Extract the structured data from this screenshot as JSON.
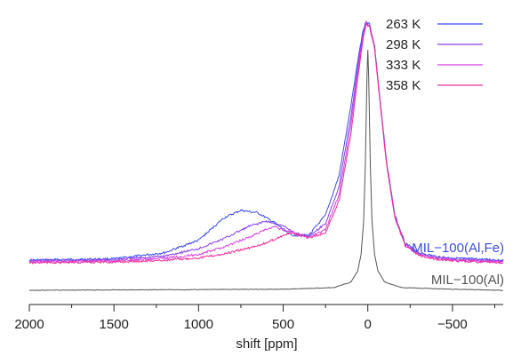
{
  "chart_data": {
    "type": "line",
    "xlabel": "shift [ppm]",
    "ylabel": "",
    "xlim": [
      2000,
      -800
    ],
    "x_reversed": true,
    "x_ticks": [
      2000,
      1500,
      1000,
      500,
      0,
      -500
    ],
    "x_tick_labels": [
      "2000",
      "1500",
      "1000",
      "500",
      "0",
      "−500"
    ],
    "y_axis_visible": false,
    "grid": false,
    "legend_position": "top-right",
    "series_labels": [
      {
        "text": "MIL−100(Al,Fe)",
        "color": "#3b4cf0"
      },
      {
        "text": "MIL−100(Al)",
        "color": "#555555"
      }
    ],
    "series": [
      {
        "name": "263 K",
        "color": "#3b4cf0",
        "x": [
          2000,
          1500,
          1200,
          1000,
          850,
          750,
          650,
          550,
          450,
          350,
          250,
          170,
          100,
          60,
          30,
          10,
          -10,
          -40,
          -70,
          -110,
          -160,
          -220,
          -300,
          -400,
          -500,
          -600,
          -800
        ],
        "y": [
          0.0,
          0.005,
          0.03,
          0.08,
          0.17,
          0.2,
          0.19,
          0.15,
          0.1,
          0.1,
          0.18,
          0.34,
          0.62,
          0.8,
          0.92,
          0.96,
          0.95,
          0.86,
          0.66,
          0.4,
          0.18,
          0.07,
          0.03,
          0.015,
          0.008,
          0.005,
          0.0
        ]
      },
      {
        "name": "298 K",
        "color": "#8a3ff0",
        "x": [
          2000,
          1500,
          1200,
          1000,
          850,
          700,
          600,
          500,
          420,
          350,
          250,
          170,
          100,
          60,
          30,
          10,
          -10,
          -40,
          -70,
          -110,
          -160,
          -220,
          -300,
          -400,
          -500,
          -600,
          -800
        ],
        "y": [
          0.0,
          0.005,
          0.02,
          0.05,
          0.09,
          0.14,
          0.16,
          0.14,
          0.11,
          0.1,
          0.15,
          0.3,
          0.58,
          0.78,
          0.91,
          0.96,
          0.95,
          0.86,
          0.66,
          0.4,
          0.18,
          0.07,
          0.03,
          0.015,
          0.008,
          0.005,
          0.0
        ]
      },
      {
        "name": "333 K",
        "color": "#d53fe0",
        "x": [
          2000,
          1500,
          1200,
          1000,
          850,
          700,
          600,
          550,
          450,
          350,
          250,
          170,
          100,
          60,
          30,
          10,
          -10,
          -40,
          -70,
          -110,
          -160,
          -220,
          -300,
          -400,
          -500,
          -600,
          -800
        ],
        "y": [
          0.0,
          0.003,
          0.015,
          0.03,
          0.06,
          0.1,
          0.13,
          0.14,
          0.12,
          0.1,
          0.13,
          0.27,
          0.55,
          0.76,
          0.9,
          0.96,
          0.95,
          0.86,
          0.66,
          0.4,
          0.18,
          0.07,
          0.03,
          0.015,
          0.008,
          0.005,
          0.0
        ]
      },
      {
        "name": "358 K",
        "color": "#f0309a",
        "x": [
          2000,
          1500,
          1200,
          1000,
          850,
          700,
          600,
          500,
          450,
          350,
          250,
          170,
          100,
          60,
          30,
          10,
          -10,
          -40,
          -70,
          -110,
          -160,
          -220,
          -300,
          -400,
          -500,
          -600,
          -800
        ],
        "y": [
          0.0,
          0.003,
          0.01,
          0.02,
          0.035,
          0.06,
          0.08,
          0.11,
          0.12,
          0.1,
          0.12,
          0.25,
          0.52,
          0.74,
          0.89,
          0.96,
          0.95,
          0.86,
          0.66,
          0.4,
          0.18,
          0.07,
          0.03,
          0.015,
          0.008,
          0.005,
          0.0
        ]
      },
      {
        "name": "MIL−100(Al)",
        "color": "#555555",
        "x": [
          2000,
          500,
          200,
          100,
          60,
          40,
          25,
          15,
          8,
          3,
          0,
          -3,
          -8,
          -15,
          -25,
          -40,
          -60,
          -100,
          -200,
          -500,
          -800
        ],
        "y": [
          0.0,
          0.004,
          0.01,
          0.03,
          0.07,
          0.13,
          0.25,
          0.45,
          0.68,
          0.85,
          0.88,
          0.85,
          0.68,
          0.45,
          0.25,
          0.13,
          0.07,
          0.03,
          0.01,
          0.004,
          0.0
        ]
      }
    ]
  }
}
